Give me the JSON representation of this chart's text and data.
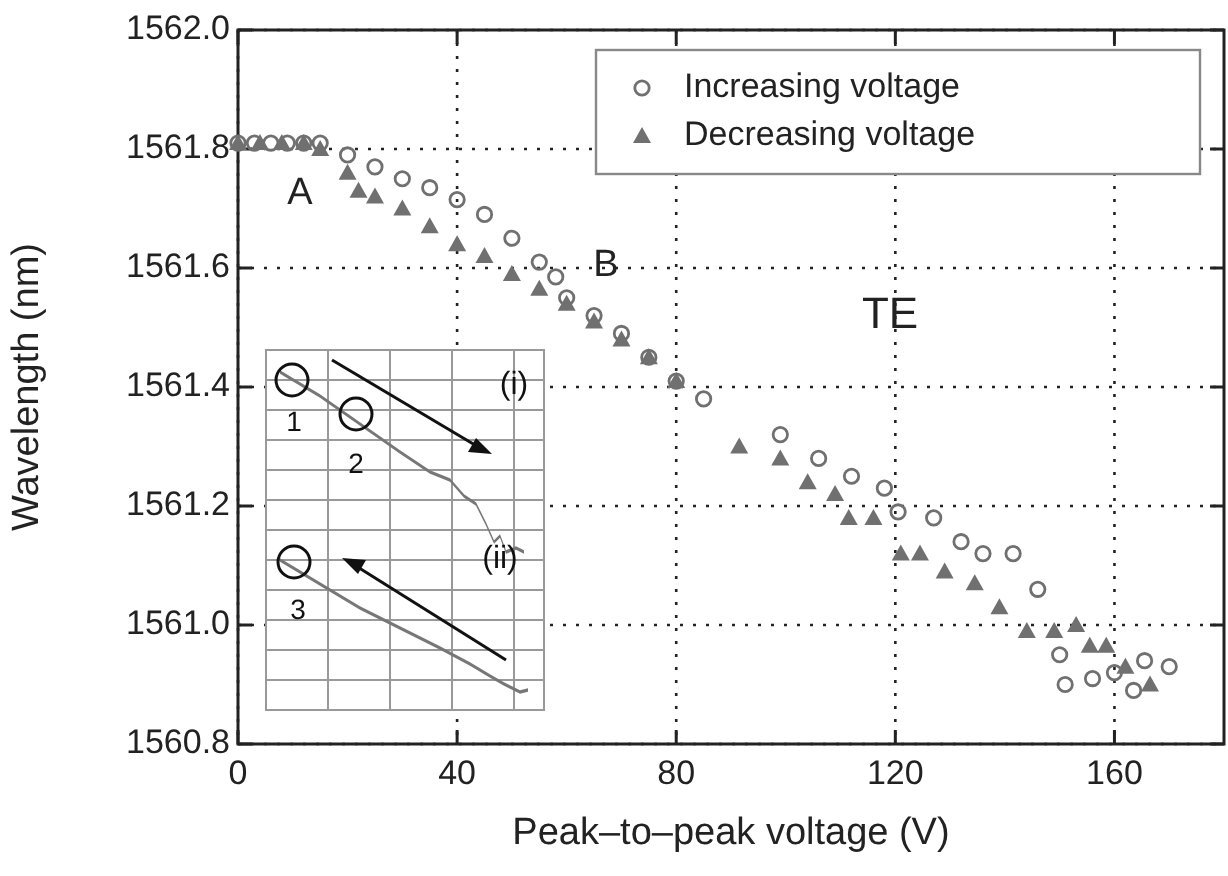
{
  "chart_data": {
    "type": "scatter",
    "xlabel": "Peak–to–peak voltage (V)",
    "ylabel": "Wavelength (nm)",
    "xlim": [
      0,
      180
    ],
    "xticks": [
      0,
      40,
      80,
      120,
      160
    ],
    "ylim": [
      1560.8,
      1562.0
    ],
    "yticks": [
      {
        "value": 1560.8,
        "label": "1560.8"
      },
      {
        "value": 1561.0,
        "label": "1561.0"
      },
      {
        "value": 1561.2,
        "label": "1561.2"
      },
      {
        "value": 1561.4,
        "label": "1561.4"
      },
      {
        "value": 1561.6,
        "label": "1561.6"
      },
      {
        "value": 1561.8,
        "label": "1561.8"
      },
      {
        "value": 1562.0,
        "label": "1562.0"
      }
    ],
    "grid": true,
    "legend": "top right",
    "series": [
      {
        "name": "Increasing voltage",
        "color": "#707070",
        "marker": "circle",
        "x": [
          0,
          3,
          6,
          9,
          12,
          15,
          20,
          25,
          30,
          35,
          40,
          45,
          50,
          55,
          58,
          60,
          65,
          70,
          75,
          80,
          85,
          99,
          106,
          112,
          118,
          120.5,
          127,
          132,
          136,
          141.5,
          146,
          150,
          151,
          156,
          160,
          163.5,
          165.5,
          170
        ],
        "values": [
          1561.81,
          1561.81,
          1561.81,
          1561.81,
          1561.81,
          1561.81,
          1561.79,
          1561.77,
          1561.75,
          1561.735,
          1561.715,
          1561.69,
          1561.65,
          1561.61,
          1561.585,
          1561.55,
          1561.52,
          1561.49,
          1561.45,
          1561.41,
          1561.38,
          1561.32,
          1561.28,
          1561.25,
          1561.23,
          1561.19,
          1561.18,
          1561.14,
          1561.12,
          1561.12,
          1561.06,
          1560.95,
          1560.9,
          1560.91,
          1560.92,
          1560.89,
          1560.94,
          1560.93
        ]
      },
      {
        "name": "Decreasing voltage",
        "color": "#707070",
        "marker": "triangle",
        "x": [
          0,
          4,
          8,
          12,
          15,
          20,
          22,
          25,
          30,
          35,
          40,
          45,
          50,
          55,
          60,
          65,
          70,
          75,
          80,
          91.5,
          99,
          104,
          109,
          111.5,
          116,
          121,
          124.5,
          129,
          134.5,
          139,
          144,
          149,
          153,
          155.5,
          158.5,
          162,
          166.5
        ],
        "values": [
          1561.81,
          1561.81,
          1561.81,
          1561.81,
          1561.8,
          1561.76,
          1561.73,
          1561.72,
          1561.7,
          1561.67,
          1561.64,
          1561.62,
          1561.59,
          1561.565,
          1561.54,
          1561.51,
          1561.48,
          1561.45,
          1561.41,
          1561.3,
          1561.28,
          1561.24,
          1561.22,
          1561.18,
          1561.18,
          1561.12,
          1561.12,
          1561.09,
          1561.07,
          1561.03,
          1560.99,
          1560.99,
          1561.0,
          1560.965,
          1560.965,
          1560.93,
          1560.9
        ]
      }
    ],
    "annotations": [
      "A",
      "B",
      "TE",
      "(i)",
      "(ii)",
      "1",
      "2",
      "3"
    ]
  }
}
